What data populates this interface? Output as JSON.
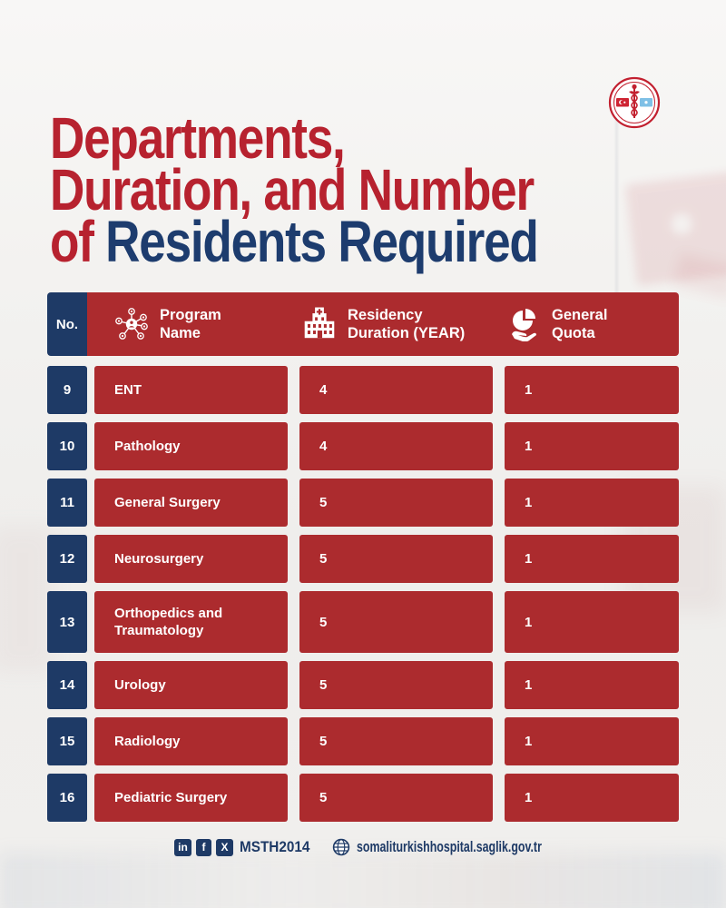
{
  "title": {
    "line1": "Departments,",
    "line2": "Duration, and Number",
    "line3_red": "of",
    "line3_rest": " Residents Required"
  },
  "logo": {
    "name": "somali-turkish-hospital-emblem"
  },
  "table": {
    "columns": [
      {
        "id": "no",
        "label": "No."
      },
      {
        "id": "program",
        "icon": "network-icon",
        "label": "Program\nName"
      },
      {
        "id": "duration",
        "icon": "hospital-icon",
        "label": "Residency\nDuration (YEAR)"
      },
      {
        "id": "quota",
        "icon": "hand-pie-icon",
        "label": "General\nQuota"
      }
    ],
    "rows": [
      {
        "no": "9",
        "program": "ENT",
        "duration": "4",
        "quota": "1"
      },
      {
        "no": "10",
        "program": "Pathology",
        "duration": "4",
        "quota": "1"
      },
      {
        "no": "11",
        "program": "General Surgery",
        "duration": "5",
        "quota": "1"
      },
      {
        "no": "12",
        "program": "Neurosurgery",
        "duration": "5",
        "quota": "1"
      },
      {
        "no": "13",
        "program": "Orthopedics and Traumatology",
        "duration": "5",
        "quota": "1"
      },
      {
        "no": "14",
        "program": "Urology",
        "duration": "5",
        "quota": "1"
      },
      {
        "no": "15",
        "program": "Radiology",
        "duration": "5",
        "quota": "1"
      },
      {
        "no": "16",
        "program": "Pediatric Surgery",
        "duration": "5",
        "quota": "1"
      }
    ]
  },
  "footer": {
    "social_icons": [
      "linkedin-icon",
      "facebook-icon",
      "x-icon"
    ],
    "handle": "MSTH2014",
    "website_icon": "globe-icon",
    "website": "somaliturkishhospital.saglik.gov.tr"
  },
  "colors": {
    "red": "#ac2b2e",
    "navy": "#1e3a66",
    "title_red": "#b7222f",
    "title_navy": "#1d3c6e"
  }
}
